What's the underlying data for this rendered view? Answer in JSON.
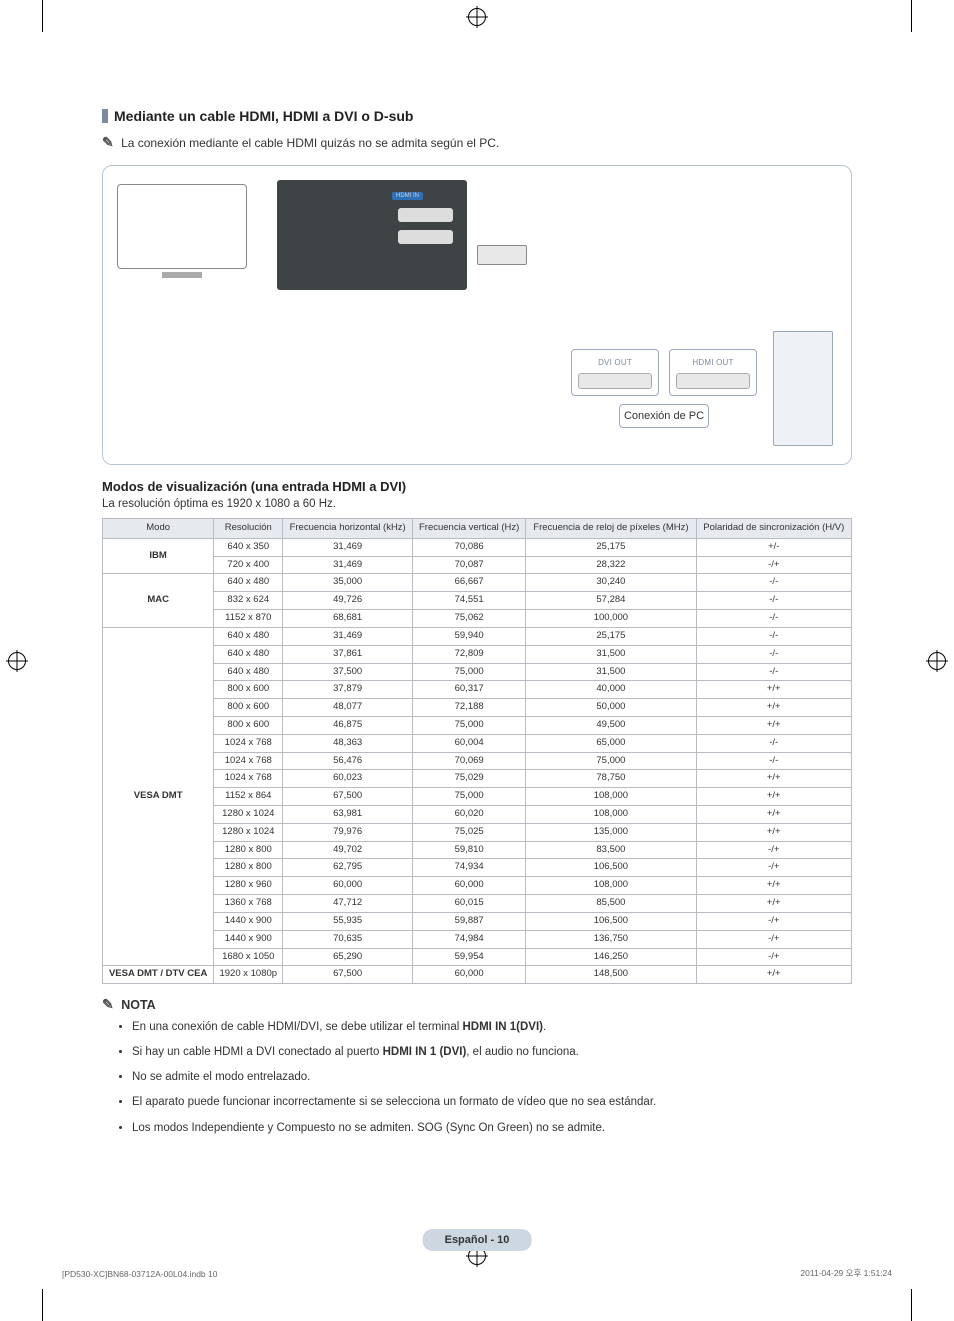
{
  "section_title": "Mediante un cable HDMI, HDMI a DVI o D-sub",
  "top_note_icon": "✎",
  "top_note": "La conexión mediante el cable HDMI quizás no se admita según el PC.",
  "diagram": {
    "dvi_out": "DVI OUT",
    "hdmi_out": "HDMI OUT",
    "caption": "Conexión de PC"
  },
  "modos_title": "Modos de visualización (una entrada HDMI a DVI)",
  "resolution_note": "La resolución óptima es 1920 x 1080 a 60 Hz.",
  "table": {
    "columns": [
      "Modo",
      "Resolución",
      "Frecuencia horizontal (kHz)",
      "Frecuencia vertical (Hz)",
      "Frecuencia de reloj de píxeles (MHz)",
      "Polaridad de sincronización (H/V)"
    ],
    "groups": [
      {
        "mode": "IBM",
        "rows": [
          [
            "640 x 350",
            "31,469",
            "70,086",
            "25,175",
            "+/-"
          ],
          [
            "720 x 400",
            "31,469",
            "70,087",
            "28,322",
            "-/+"
          ]
        ]
      },
      {
        "mode": "MAC",
        "rows": [
          [
            "640 x 480",
            "35,000",
            "66,667",
            "30,240",
            "-/-"
          ],
          [
            "832 x 624",
            "49,726",
            "74,551",
            "57,284",
            "-/-"
          ],
          [
            "1152 x 870",
            "68,681",
            "75,062",
            "100,000",
            "-/-"
          ]
        ]
      },
      {
        "mode": "VESA DMT",
        "rows": [
          [
            "640 x 480",
            "31,469",
            "59,940",
            "25,175",
            "-/-"
          ],
          [
            "640 x 480",
            "37,861",
            "72,809",
            "31,500",
            "-/-"
          ],
          [
            "640 x 480",
            "37,500",
            "75,000",
            "31,500",
            "-/-"
          ],
          [
            "800 x 600",
            "37,879",
            "60,317",
            "40,000",
            "+/+"
          ],
          [
            "800 x 600",
            "48,077",
            "72,188",
            "50,000",
            "+/+"
          ],
          [
            "800 x 600",
            "46,875",
            "75,000",
            "49,500",
            "+/+"
          ],
          [
            "1024 x 768",
            "48,363",
            "60,004",
            "65,000",
            "-/-"
          ],
          [
            "1024 x 768",
            "56,476",
            "70,069",
            "75,000",
            "-/-"
          ],
          [
            "1024 x 768",
            "60,023",
            "75,029",
            "78,750",
            "+/+"
          ],
          [
            "1152 x 864",
            "67,500",
            "75,000",
            "108,000",
            "+/+"
          ],
          [
            "1280 x 1024",
            "63,981",
            "60,020",
            "108,000",
            "+/+"
          ],
          [
            "1280 x 1024",
            "79,976",
            "75,025",
            "135,000",
            "+/+"
          ],
          [
            "1280 x 800",
            "49,702",
            "59,810",
            "83,500",
            "-/+"
          ],
          [
            "1280 x 800",
            "62,795",
            "74,934",
            "106,500",
            "-/+"
          ],
          [
            "1280 x 960",
            "60,000",
            "60,000",
            "108,000",
            "+/+"
          ],
          [
            "1360 x 768",
            "47,712",
            "60,015",
            "85,500",
            "+/+"
          ],
          [
            "1440 x 900",
            "55,935",
            "59,887",
            "106,500",
            "-/+"
          ],
          [
            "1440 x 900",
            "70,635",
            "74,984",
            "136,750",
            "-/+"
          ],
          [
            "1680 x 1050",
            "65,290",
            "59,954",
            "146,250",
            "-/+"
          ]
        ]
      },
      {
        "mode": "VESA DMT / DTV CEA",
        "rows": [
          [
            "1920 x 1080p",
            "67,500",
            "60,000",
            "148,500",
            "+/+"
          ]
        ]
      }
    ]
  },
  "nota_hdr_icon": "✎",
  "nota_hdr": "NOTA",
  "notas": [
    {
      "prefix": "En una conexión de cable HDMI/DVI, se debe utilizar el terminal ",
      "bold": "HDMI IN 1(DVI)",
      "suffix": "."
    },
    {
      "prefix": "Si hay un cable HDMI a DVI conectado al puerto ",
      "bold": "HDMI IN 1 (DVI)",
      "suffix": ", el audio no funciona."
    },
    {
      "prefix": "No se admite el modo entrelazado.",
      "bold": "",
      "suffix": ""
    },
    {
      "prefix": "El aparato puede funcionar incorrectamente si se selecciona un formato de vídeo que no sea estándar.",
      "bold": "",
      "suffix": ""
    },
    {
      "prefix": "Los modos Independiente y Compuesto no se admiten. SOG (Sync On Green) no se admite.",
      "bold": "",
      "suffix": ""
    }
  ],
  "footer_pill": "Español - 10",
  "print_left": "[PD530-XC]BN68-03712A-00L04.indb   10",
  "print_right": "2011-04-29   오후 1:51:24"
}
